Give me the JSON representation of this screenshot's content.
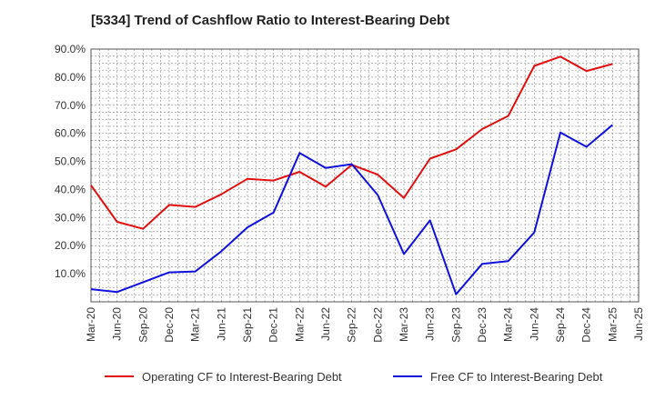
{
  "chart_data": {
    "type": "line",
    "title": "[5334]  Trend of Cashflow Ratio to Interest-Bearing Debt",
    "xlabel": "",
    "ylabel": "",
    "categories": [
      "Mar-20",
      "Jun-20",
      "Sep-20",
      "Dec-20",
      "Mar-21",
      "Jun-21",
      "Sep-21",
      "Dec-21",
      "Mar-22",
      "Jun-22",
      "Sep-22",
      "Dec-22",
      "Mar-23",
      "Jun-23",
      "Sep-23",
      "Dec-23",
      "Mar-24",
      "Jun-24",
      "Sep-24",
      "Dec-24",
      "Mar-25",
      "Jun-25"
    ],
    "yticks": [
      "10.0%",
      "20.0%",
      "30.0%",
      "40.0%",
      "50.0%",
      "60.0%",
      "70.0%",
      "80.0%",
      "90.0%"
    ],
    "ytick_values": [
      10,
      20,
      30,
      40,
      50,
      60,
      70,
      80,
      90
    ],
    "ylim": [
      0,
      90
    ],
    "grid": true,
    "legend_position": "bottom",
    "series": [
      {
        "name": "Operating CF to Interest-Bearing Debt",
        "color": "#e01010",
        "values": [
          41.5,
          28.5,
          26.0,
          34.5,
          33.8,
          38.3,
          43.8,
          43.2,
          46.3,
          41.0,
          48.8,
          45.3,
          37.0,
          51.0,
          54.3,
          61.5,
          66.2,
          84.0,
          87.3,
          82.2,
          84.7,
          null
        ]
      },
      {
        "name": "Free CF to Interest-Bearing Debt",
        "color": "#1010dd",
        "values": [
          4.5,
          3.5,
          7.0,
          10.5,
          10.8,
          18.0,
          26.5,
          31.8,
          53.0,
          47.7,
          49.0,
          38.0,
          17.0,
          29.0,
          2.7,
          13.5,
          14.5,
          24.7,
          60.3,
          55.2,
          63.0,
          null
        ]
      }
    ]
  }
}
